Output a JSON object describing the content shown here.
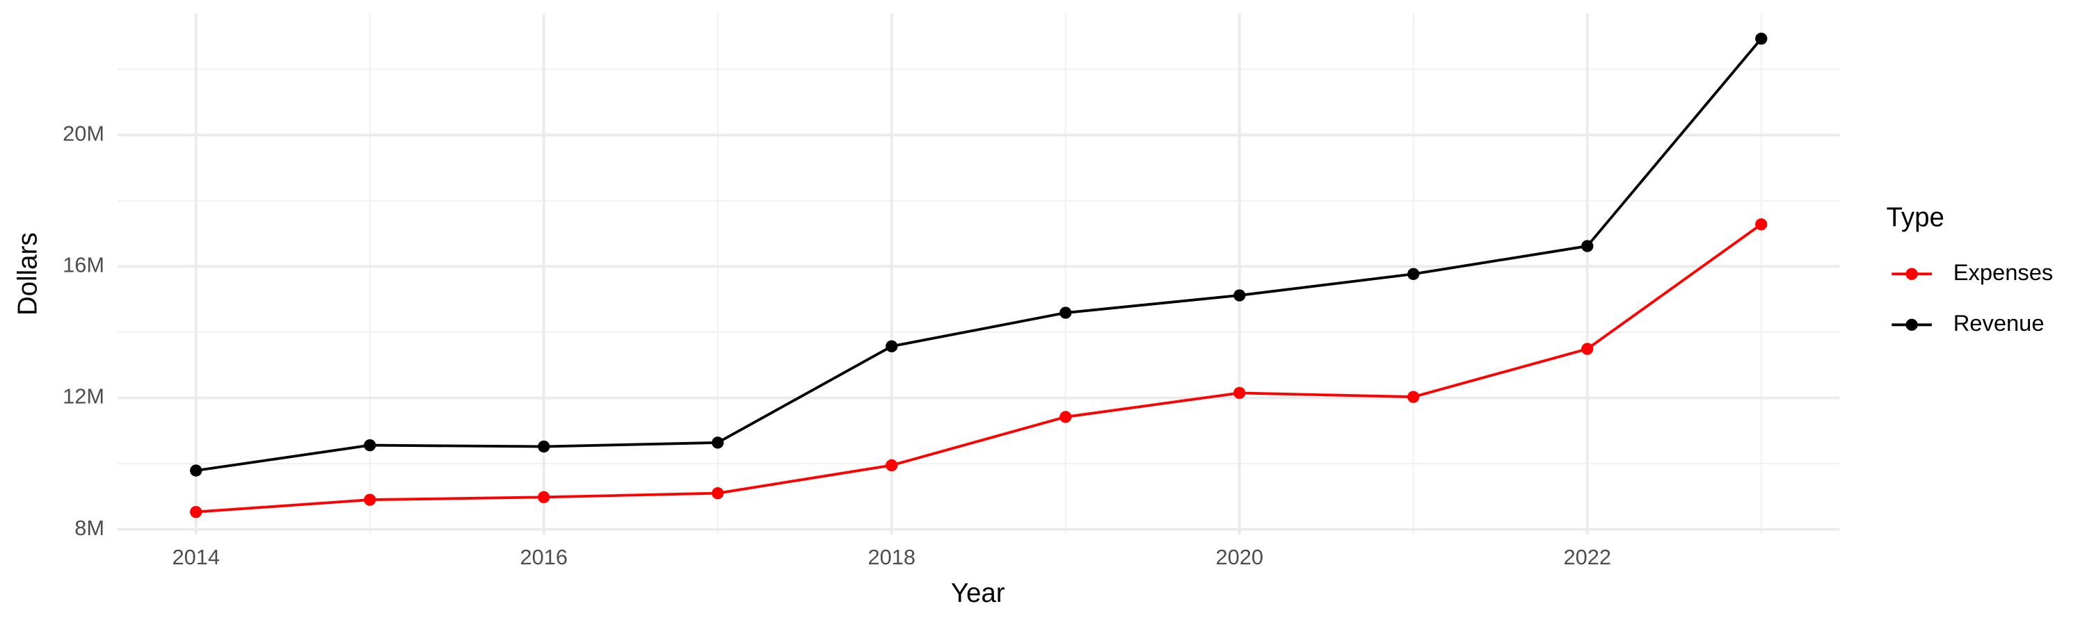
{
  "chart_data": {
    "type": "line",
    "x_label": "Year",
    "y_label": "Dollars",
    "x": [
      2014,
      2015,
      2016,
      2017,
      2018,
      2019,
      2020,
      2021,
      2022,
      2023
    ],
    "series": [
      {
        "name": "Expenses",
        "color": "#ff0000",
        "values": [
          8530000,
          8900000,
          8980000,
          9100000,
          9950000,
          11420000,
          12150000,
          12030000,
          13490000,
          17280000
        ]
      },
      {
        "name": "Revenue",
        "color": "#000000",
        "values": [
          9790000,
          10560000,
          10520000,
          10640000,
          13570000,
          14590000,
          15120000,
          15770000,
          16620000,
          22930000
        ]
      }
    ],
    "xlim": [
      2013.55,
      2023.45
    ],
    "xticks": [
      2014,
      2016,
      2018,
      2020,
      2022
    ],
    "ylim": [
      7840000,
      23700000
    ],
    "yticks": [
      {
        "value": 8000000,
        "label": "8M"
      },
      {
        "value": 12000000,
        "label": "12M"
      },
      {
        "value": 16000000,
        "label": "16M"
      },
      {
        "value": 20000000,
        "label": "20M"
      }
    ],
    "grid": true,
    "legend_title": "Type",
    "legend_position": "right"
  }
}
